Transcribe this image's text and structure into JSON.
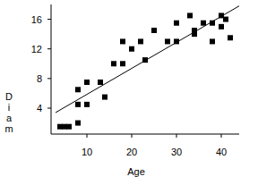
{
  "chart_data": {
    "type": "scatter",
    "x_label": "Age",
    "y_label": "Diam",
    "xlim": [
      2,
      44
    ],
    "ylim": [
      0.5,
      18
    ],
    "xticks": [
      10,
      20,
      30,
      40
    ],
    "yticks": [
      4,
      8,
      12,
      16
    ],
    "series": [
      {
        "type": "scatter",
        "marker": "square",
        "color": "#000000",
        "x": [
          4,
          5,
          6,
          8,
          8,
          8,
          10,
          10,
          13,
          14,
          16,
          18,
          18,
          20,
          22,
          23,
          25,
          28,
          30,
          30,
          33,
          34,
          34,
          36,
          38,
          38,
          40,
          40,
          41,
          42
        ],
        "values": [
          1.5,
          1.5,
          1.5,
          2,
          4.5,
          6.5,
          4.5,
          7.5,
          7.5,
          5.5,
          10,
          10,
          13,
          12,
          13,
          10.5,
          14.5,
          13,
          13,
          15.5,
          16.5,
          14.5,
          14,
          15.5,
          15.5,
          13,
          16.5,
          15,
          16,
          13.5
        ]
      },
      {
        "type": "line",
        "line_style": "solid",
        "color": "#000000",
        "x": [
          3,
          44
        ],
        "values": [
          3.4,
          17.8
        ]
      }
    ]
  }
}
